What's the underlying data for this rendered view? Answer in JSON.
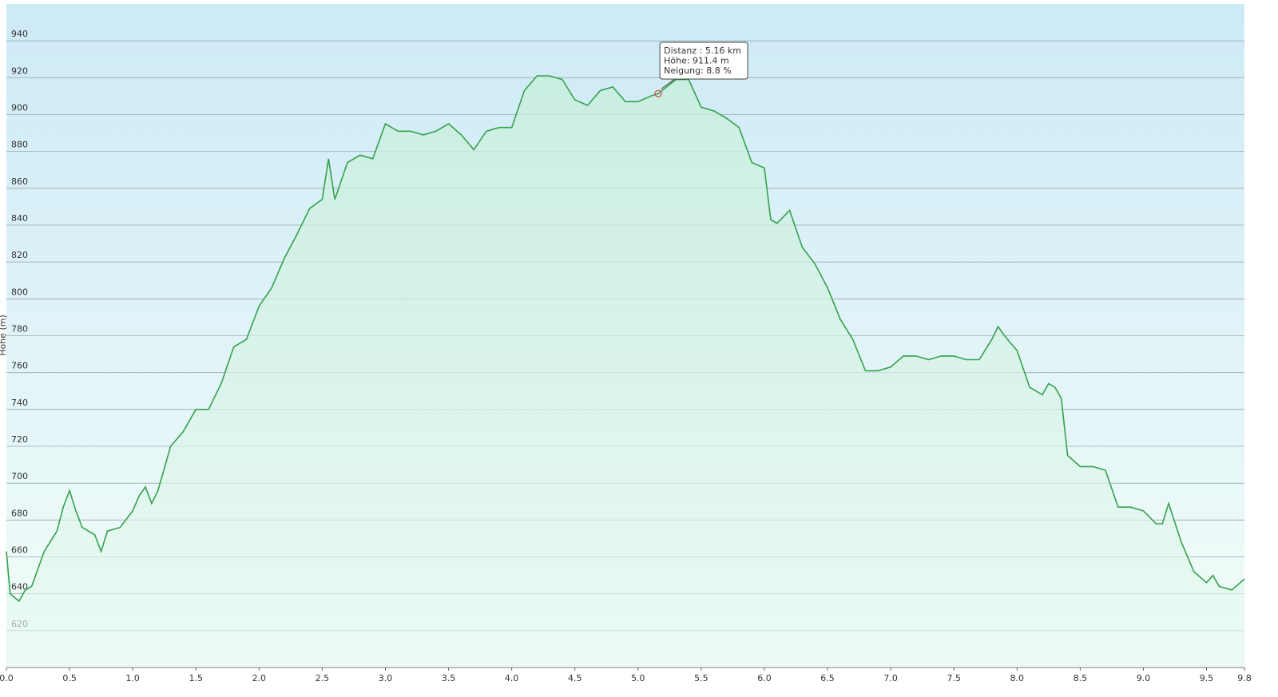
{
  "chart_data": {
    "type": "area",
    "y_label": "Höhe (m)",
    "tooltip": [
      "Distanz : 5.16 km",
      "Höhe: 911.4 m",
      "Neigung: 8.8 %"
    ],
    "marker": {
      "x": 5.16,
      "y": 911.4
    },
    "color": "#36a04e",
    "grid": true,
    "xlim": [
      0,
      9.8
    ],
    "ylim": [
      600,
      960
    ],
    "xticks": [
      {
        "value": 0,
        "label": "0.0"
      },
      0.5,
      {
        "value": 1,
        "label": "1.0"
      },
      1.5,
      {
        "value": 2,
        "label": "2.0"
      },
      2.5,
      {
        "value": 3,
        "label": "3.0"
      },
      3.5,
      {
        "value": 4,
        "label": "4.0"
      },
      4.5,
      {
        "value": 5,
        "label": "5.0"
      },
      5.5,
      {
        "value": 6,
        "label": "6.0"
      },
      6.5,
      {
        "value": 7,
        "label": "7.0"
      },
      7.5,
      {
        "value": 8,
        "label": "8.0"
      },
      8.5,
      {
        "value": 9,
        "label": "9.0"
      },
      9.5,
      9.8
    ],
    "yticks": [
      620,
      640,
      660,
      680,
      700,
      720,
      740,
      760,
      780,
      800,
      820,
      840,
      860,
      880,
      900,
      920,
      940
    ],
    "x": [
      0,
      0.03,
      0.1,
      0.15,
      0.2,
      0.3,
      0.4,
      0.45,
      0.5,
      0.55,
      0.6,
      0.7,
      0.75,
      0.8,
      0.9,
      1.0,
      1.05,
      1.1,
      1.15,
      1.2,
      1.3,
      1.4,
      1.5,
      1.6,
      1.7,
      1.8,
      1.9,
      2.0,
      2.1,
      2.2,
      2.3,
      2.4,
      2.5,
      2.55,
      2.6,
      2.7,
      2.8,
      2.9,
      3.0,
      3.1,
      3.2,
      3.3,
      3.4,
      3.5,
      3.6,
      3.7,
      3.8,
      3.9,
      4.0,
      4.1,
      4.2,
      4.3,
      4.4,
      4.5,
      4.6,
      4.7,
      4.8,
      4.9,
      5.0,
      5.1,
      5.16,
      5.3,
      5.4,
      5.5,
      5.6,
      5.7,
      5.8,
      5.9,
      6.0,
      6.05,
      6.1,
      6.2,
      6.3,
      6.4,
      6.5,
      6.6,
      6.7,
      6.8,
      6.9,
      7.0,
      7.1,
      7.2,
      7.3,
      7.4,
      7.5,
      7.6,
      7.7,
      7.8,
      7.85,
      7.9,
      8.0,
      8.1,
      8.2,
      8.25,
      8.3,
      8.35,
      8.4,
      8.5,
      8.6,
      8.7,
      8.8,
      8.9,
      9.0,
      9.1,
      9.15,
      9.2,
      9.3,
      9.4,
      9.5,
      9.55,
      9.6,
      9.7,
      9.8
    ],
    "values": [
      663,
      640,
      636,
      642,
      644,
      663,
      674,
      687,
      696,
      685,
      676,
      672,
      663,
      674,
      676,
      685,
      693,
      698,
      689,
      696,
      720,
      728,
      740,
      740,
      754,
      774,
      778,
      796,
      806,
      822,
      835,
      849,
      854,
      876,
      854,
      874,
      878,
      876,
      895,
      891,
      891,
      889,
      891,
      895,
      889,
      881,
      891,
      893,
      893,
      913,
      921,
      921,
      919,
      908,
      905,
      913,
      915,
      907,
      907,
      910,
      911.4,
      919,
      919,
      904,
      902,
      898,
      893,
      874,
      871,
      843,
      841,
      848,
      828,
      819,
      806,
      789,
      778,
      761,
      761,
      763,
      769,
      769,
      767,
      769,
      769,
      767,
      767,
      778,
      785,
      780,
      772,
      752,
      748,
      754,
      752,
      746,
      715,
      709,
      709,
      707,
      687,
      687,
      685,
      678,
      678,
      689,
      668,
      652,
      646,
      650,
      644,
      642,
      648
    ]
  }
}
